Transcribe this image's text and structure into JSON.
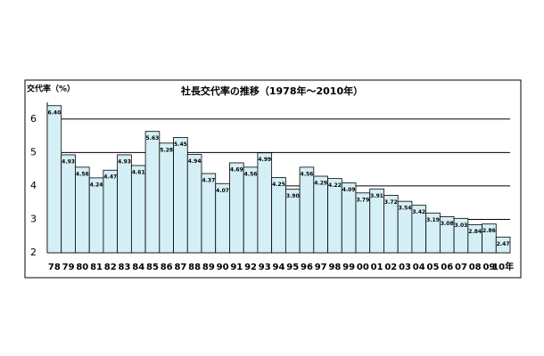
{
  "chart_data": {
    "type": "bar",
    "title": "社長交代率の推移（1978年～2010年）",
    "y_label": "交代率（%）",
    "categories": [
      "78",
      "79",
      "80",
      "81",
      "82",
      "83",
      "84",
      "85",
      "86",
      "87",
      "88",
      "89",
      "90",
      "91",
      "92",
      "93",
      "94",
      "95",
      "96",
      "97",
      "98",
      "99",
      "00",
      "01",
      "02",
      "03",
      "04",
      "05",
      "06",
      "07",
      "08",
      "09",
      "10年"
    ],
    "values": [
      6.4,
      4.93,
      4.56,
      4.24,
      4.47,
      4.93,
      4.61,
      5.63,
      5.28,
      5.45,
      4.94,
      4.37,
      4.07,
      4.69,
      4.56,
      4.99,
      4.25,
      3.9,
      4.56,
      4.29,
      4.22,
      4.09,
      3.79,
      3.91,
      3.72,
      3.54,
      3.42,
      3.19,
      3.08,
      3.03,
      2.84,
      2.86,
      2.47
    ],
    "value_labels": [
      "6.40",
      "4.93",
      "4.56",
      "4.24",
      "4.47",
      "4.93",
      "4.61",
      "5.63",
      "5.28",
      "5.45",
      "4.94",
      "4.37",
      "4.07",
      "4.69",
      "4.56",
      "4.99",
      "4.25",
      "3.90",
      "4.56",
      "4.29",
      "4.22",
      "4.09",
      "3.79",
      "3.91",
      "3.72",
      "3.54",
      "3.42",
      "3.19",
      "3.08",
      "3.03",
      "2.84",
      "2.86",
      "2.47"
    ],
    "color": "#d5eff7",
    "ylim": [
      2,
      6.5
    ],
    "yticks": [
      2,
      3,
      4,
      5,
      6
    ],
    "grid": true
  }
}
